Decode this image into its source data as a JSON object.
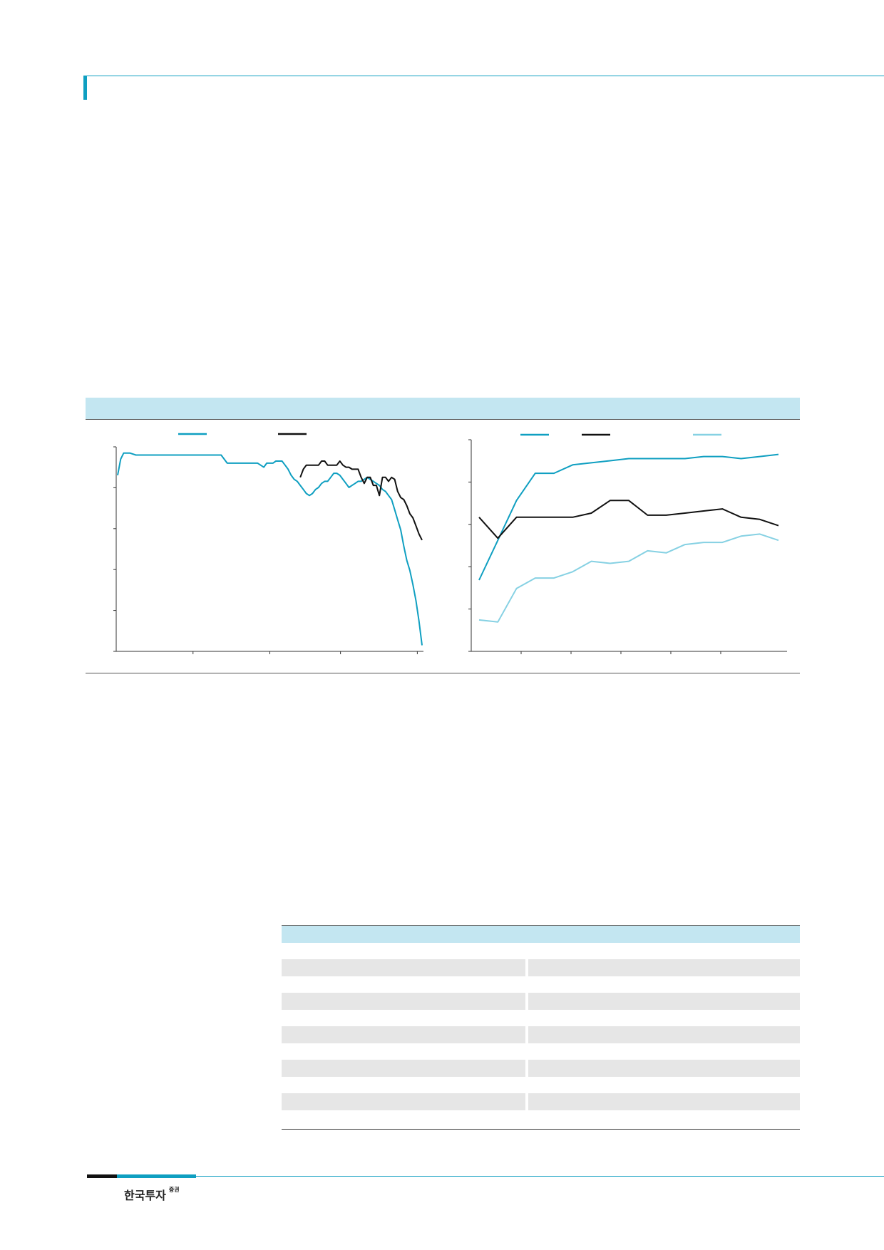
{
  "brand": {
    "name": "한국투자",
    "suffix": "증권"
  },
  "colors": {
    "accent": "#0f9fc1",
    "band": "#c3e6f1",
    "dark": "#111111",
    "light": "#86d1e3",
    "row_shade": "#e6e6e6"
  },
  "chart_data": [
    {
      "type": "line",
      "x": [
        0,
        2,
        4,
        8,
        12,
        16,
        20,
        24,
        28,
        32,
        36,
        40,
        44,
        48,
        52,
        56,
        60,
        64,
        68,
        72,
        76,
        80,
        84,
        88,
        92,
        96,
        98,
        100,
        102,
        104,
        106,
        108,
        110,
        112,
        114,
        116,
        118,
        120,
        122,
        124,
        126,
        128,
        130,
        132,
        134,
        136,
        138,
        140,
        142,
        144,
        146,
        148,
        150,
        152,
        154,
        156,
        158,
        160,
        162,
        164,
        166,
        168,
        170,
        172,
        174,
        176,
        178,
        180,
        182,
        184,
        186,
        188,
        190,
        192,
        194,
        196,
        198,
        200
      ],
      "series": [
        {
          "color": "#0f9fc1",
          "values": [
            87,
            95,
            98,
            98,
            97,
            97,
            97,
            97,
            97,
            97,
            97,
            97,
            97,
            97,
            97,
            97,
            97,
            97,
            97,
            93,
            93,
            93,
            93,
            93,
            93,
            91,
            93,
            93,
            93,
            94,
            94,
            94,
            92,
            90,
            87,
            85,
            84,
            82,
            80,
            78,
            77,
            78,
            80,
            81,
            83,
            84,
            84,
            86,
            88,
            88,
            87,
            85,
            83,
            81,
            82,
            83,
            84,
            84,
            85,
            86,
            85,
            84,
            83,
            82,
            80,
            79,
            77,
            75,
            70,
            65,
            60,
            52,
            45,
            40,
            33,
            25,
            15,
            3
          ]
        },
        {
          "color": "#111111",
          "values": [
            null,
            null,
            null,
            null,
            null,
            null,
            null,
            null,
            null,
            null,
            null,
            null,
            null,
            null,
            null,
            null,
            null,
            null,
            null,
            null,
            null,
            null,
            null,
            null,
            null,
            null,
            null,
            null,
            null,
            null,
            null,
            null,
            null,
            null,
            null,
            null,
            null,
            null,
            null,
            null,
            null,
            null,
            null,
            null,
            null,
            null,
            null,
            null,
            null,
            null,
            null,
            null,
            null,
            null,
            null,
            null,
            null,
            null,
            null,
            null,
            null,
            null,
            null,
            null,
            null,
            null,
            null,
            null,
            null,
            null,
            null,
            null,
            null,
            null,
            null,
            null,
            null,
            null
          ]
        }
      ]
    },
    {
      "type": "line",
      "x": [
        0,
        1,
        2,
        3,
        4,
        5,
        6,
        7,
        8,
        9,
        10,
        11,
        12,
        13,
        14,
        15,
        16
      ],
      "series": [
        {
          "color": "#0f9fc1",
          "values": [
            34,
            53,
            72,
            85,
            85,
            89,
            90,
            91,
            92,
            92,
            92,
            92,
            93,
            93,
            92,
            93,
            94
          ]
        },
        {
          "color": "#111111",
          "values": [
            64,
            54,
            64,
            64,
            64,
            64,
            66,
            72,
            72,
            65,
            65,
            66,
            67,
            68,
            64,
            63,
            60
          ]
        },
        {
          "color": "#86d1e3",
          "values": [
            15,
            14,
            30,
            35,
            35,
            38,
            43,
            42,
            43,
            48,
            47,
            51,
            52,
            52,
            55,
            56,
            53
          ]
        }
      ]
    }
  ],
  "table": {
    "rows": [
      {
        "c1": "",
        "c3": ""
      },
      {
        "c1": "",
        "c3": ""
      },
      {
        "c1": "",
        "c3": ""
      },
      {
        "c1": "",
        "c3": ""
      },
      {
        "c1": "",
        "c3": ""
      },
      {
        "c1": "",
        "c3": ""
      },
      {
        "c1": "",
        "c3": ""
      },
      {
        "c1": "",
        "c3": ""
      },
      {
        "c1": "",
        "c3": ""
      },
      {
        "c1": "",
        "c3": ""
      },
      {
        "c1": "",
        "c3": ""
      }
    ]
  }
}
